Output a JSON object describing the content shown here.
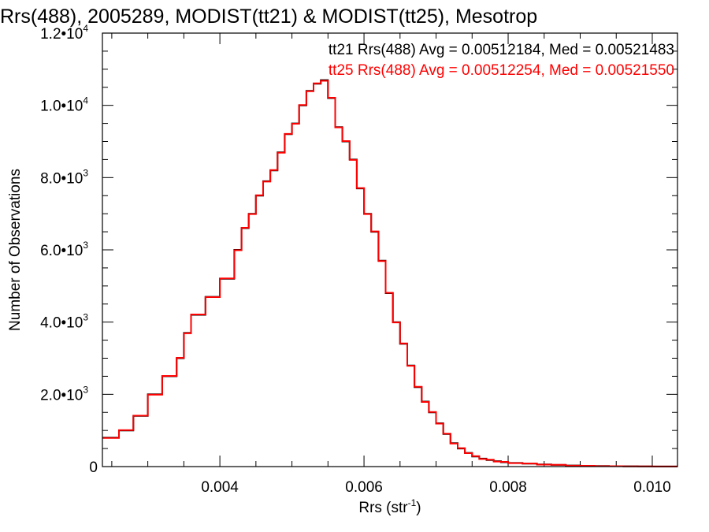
{
  "chart_data": {
    "type": "line",
    "title": "Rrs(488), 2005289, MODIST(tt21) & MODIST(tt25), Mesotrop",
    "xlabel": {
      "base": "Rrs (str",
      "sup": "-1",
      "close": ")"
    },
    "ylabel": "Number of Observations",
    "xlim": [
      0.00237,
      0.01035
    ],
    "ylim": [
      0,
      12000
    ],
    "grid": false,
    "legend_position": "top-right",
    "x_ticks": [
      {
        "value": 0.004,
        "label": "0.004"
      },
      {
        "value": 0.006,
        "label": "0.006"
      },
      {
        "value": 0.008,
        "label": "0.008"
      },
      {
        "value": 0.01,
        "label": "0.010"
      }
    ],
    "y_ticks": [
      {
        "value": 0,
        "label": "0",
        "mant": "",
        "exp": ""
      },
      {
        "value": 2000,
        "label": "",
        "mant": "2.0•10",
        "exp": "3"
      },
      {
        "value": 4000,
        "label": "",
        "mant": "4.0•10",
        "exp": "3"
      },
      {
        "value": 6000,
        "label": "",
        "mant": "6.0•10",
        "exp": "3"
      },
      {
        "value": 8000,
        "label": "",
        "mant": "8.0•10",
        "exp": "3"
      },
      {
        "value": 10000,
        "label": "",
        "mant": "1.0•10",
        "exp": "4"
      },
      {
        "value": 12000,
        "label": "",
        "mant": "1.2•10",
        "exp": "4"
      }
    ],
    "series": [
      {
        "name": "tt21",
        "color": "#000000",
        "stats_label": "tt21 Rrs(488) Avg = 0.00512184, Med = 0.00521483",
        "x": [
          0.00237,
          0.0026,
          0.0028,
          0.003,
          0.0032,
          0.0034,
          0.0035,
          0.0036,
          0.0038,
          0.004,
          0.0042,
          0.0043,
          0.0044,
          0.0045,
          0.0046,
          0.0047,
          0.0048,
          0.0049,
          0.005,
          0.0051,
          0.0052,
          0.0053,
          0.0054,
          0.0055,
          0.0056,
          0.0057,
          0.0058,
          0.0059,
          0.006,
          0.0061,
          0.0062,
          0.0063,
          0.0064,
          0.0065,
          0.0066,
          0.0067,
          0.0068,
          0.0069,
          0.007,
          0.0071,
          0.0072,
          0.0073,
          0.0074,
          0.0075,
          0.0076,
          0.0077,
          0.0078,
          0.0079,
          0.008,
          0.0082,
          0.0084,
          0.0086,
          0.0088,
          0.009,
          0.0092,
          0.0094,
          0.0096,
          0.0098,
          0.01,
          0.01035
        ],
        "values": [
          800,
          1000,
          1400,
          2000,
          2500,
          3000,
          3700,
          4200,
          4700,
          5200,
          6000,
          6600,
          7000,
          7500,
          7900,
          8200,
          8700,
          9200,
          9500,
          10000,
          10400,
          10600,
          10700,
          10200,
          9400,
          9000,
          8500,
          7700,
          7000,
          6500,
          5700,
          4800,
          4000,
          3400,
          2800,
          2200,
          1800,
          1500,
          1200,
          900,
          650,
          500,
          380,
          280,
          220,
          180,
          150,
          120,
          100,
          80,
          60,
          45,
          30,
          20,
          15,
          10,
          8,
          5,
          3,
          2
        ]
      },
      {
        "name": "tt25",
        "color": "#ff0000",
        "stats_label": "tt25 Rrs(488) Avg = 0.00512254, Med = 0.00521550",
        "x": [
          0.00237,
          0.0026,
          0.0028,
          0.003,
          0.0032,
          0.0034,
          0.0035,
          0.0036,
          0.0038,
          0.004,
          0.0042,
          0.0043,
          0.0044,
          0.0045,
          0.0046,
          0.0047,
          0.0048,
          0.0049,
          0.005,
          0.0051,
          0.0052,
          0.0053,
          0.0054,
          0.0055,
          0.0056,
          0.0057,
          0.0058,
          0.0059,
          0.006,
          0.0061,
          0.0062,
          0.0063,
          0.0064,
          0.0065,
          0.0066,
          0.0067,
          0.0068,
          0.0069,
          0.007,
          0.0071,
          0.0072,
          0.0073,
          0.0074,
          0.0075,
          0.0076,
          0.0077,
          0.0078,
          0.0079,
          0.008,
          0.0082,
          0.0084,
          0.0086,
          0.0088,
          0.009,
          0.0092,
          0.0094,
          0.0096,
          0.0098,
          0.01,
          0.01035
        ],
        "values": [
          790,
          1010,
          1410,
          1990,
          2510,
          3010,
          3690,
          4210,
          4690,
          5210,
          5990,
          6610,
          6990,
          7510,
          7890,
          8210,
          8690,
          9210,
          9490,
          10010,
          10390,
          10610,
          10680,
          10210,
          9390,
          9010,
          8490,
          7710,
          6990,
          6510,
          5690,
          4810,
          3990,
          3410,
          2790,
          2210,
          1790,
          1510,
          1190,
          910,
          640,
          510,
          370,
          290,
          210,
          190,
          140,
          130,
          95,
          85,
          55,
          50,
          25,
          22,
          12,
          11,
          6,
          6,
          2,
          2
        ]
      }
    ]
  }
}
